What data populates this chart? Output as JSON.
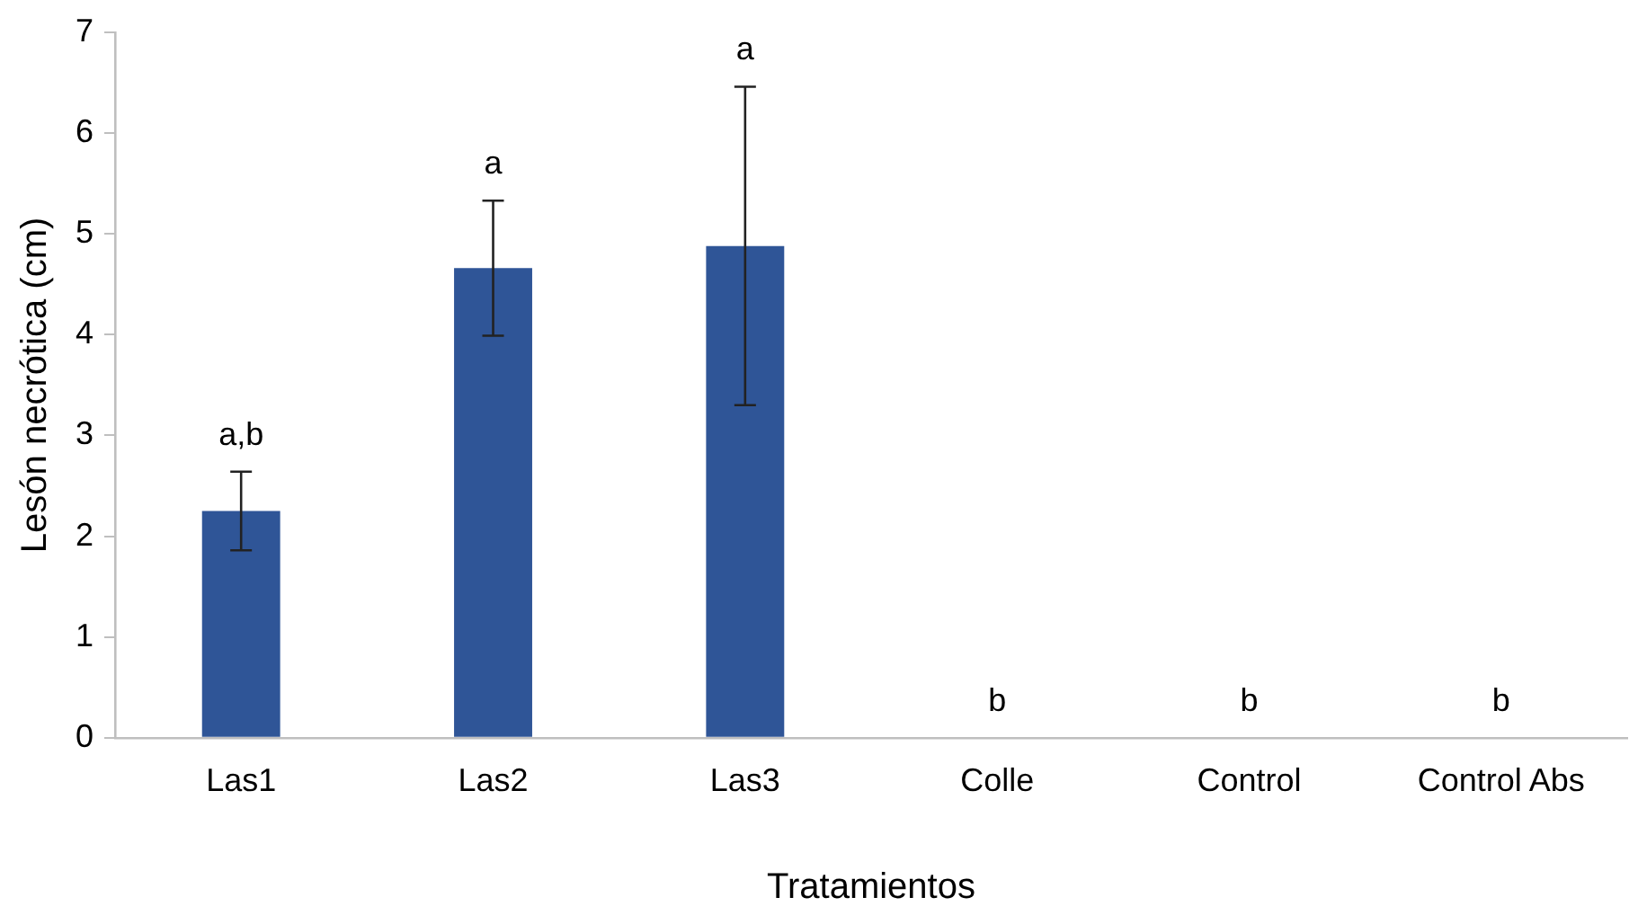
{
  "chart_data": {
    "type": "bar",
    "xlabel": "Tratamientos",
    "ylabel": "Lesón necrótica (cm)",
    "categories": [
      "Las1",
      "Las2",
      "Las3",
      "Colle",
      "Control",
      "Control Abs"
    ],
    "values": [
      2.25,
      4.66,
      4.88,
      0,
      0,
      0
    ],
    "errors": [
      0.39,
      0.67,
      1.58,
      null,
      null,
      null
    ],
    "color": "#2f5597",
    "ylim": [
      0,
      7
    ],
    "yticks": [
      0,
      1,
      2,
      3,
      4,
      5,
      6,
      7
    ],
    "grid": false,
    "legend": false,
    "annotations": [
      "a,b",
      "a",
      "a",
      "b",
      "b",
      "b"
    ]
  }
}
